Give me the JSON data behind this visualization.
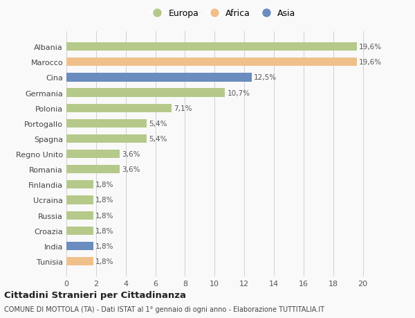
{
  "countries": [
    "Albania",
    "Marocco",
    "Cina",
    "Germania",
    "Polonia",
    "Portogallo",
    "Spagna",
    "Regno Unito",
    "Romania",
    "Finlandia",
    "Ucraina",
    "Russia",
    "Croazia",
    "India",
    "Tunisia"
  ],
  "values": [
    19.6,
    19.6,
    12.5,
    10.7,
    7.1,
    5.4,
    5.4,
    3.6,
    3.6,
    1.8,
    1.8,
    1.8,
    1.8,
    1.8,
    1.8
  ],
  "labels": [
    "19,6%",
    "19,6%",
    "12,5%",
    "10,7%",
    "7,1%",
    "5,4%",
    "5,4%",
    "3,6%",
    "3,6%",
    "1,8%",
    "1,8%",
    "1,8%",
    "1,8%",
    "1,8%",
    "1,8%"
  ],
  "colors": [
    "#b5c98a",
    "#f0c08a",
    "#6b8cbf",
    "#b5c98a",
    "#b5c98a",
    "#b5c98a",
    "#b5c98a",
    "#b5c98a",
    "#b5c98a",
    "#b5c98a",
    "#b5c98a",
    "#b5c98a",
    "#b5c98a",
    "#6b8cbf",
    "#f0c08a"
  ],
  "europa_color": "#b5c98a",
  "africa_color": "#f0c08a",
  "asia_color": "#6b8cbf",
  "xlim": [
    0,
    21
  ],
  "xticks": [
    0,
    2,
    4,
    6,
    8,
    10,
    12,
    14,
    16,
    18,
    20
  ],
  "title": "Cittadini Stranieri per Cittadinanza",
  "subtitle": "COMUNE DI MOTTOLA (TA) - Dati ISTAT al 1° gennaio di ogni anno - Elaborazione TUTTITALIA.IT",
  "background_color": "#f9f9f9",
  "grid_color": "#d0d0d0",
  "bar_height": 0.55
}
